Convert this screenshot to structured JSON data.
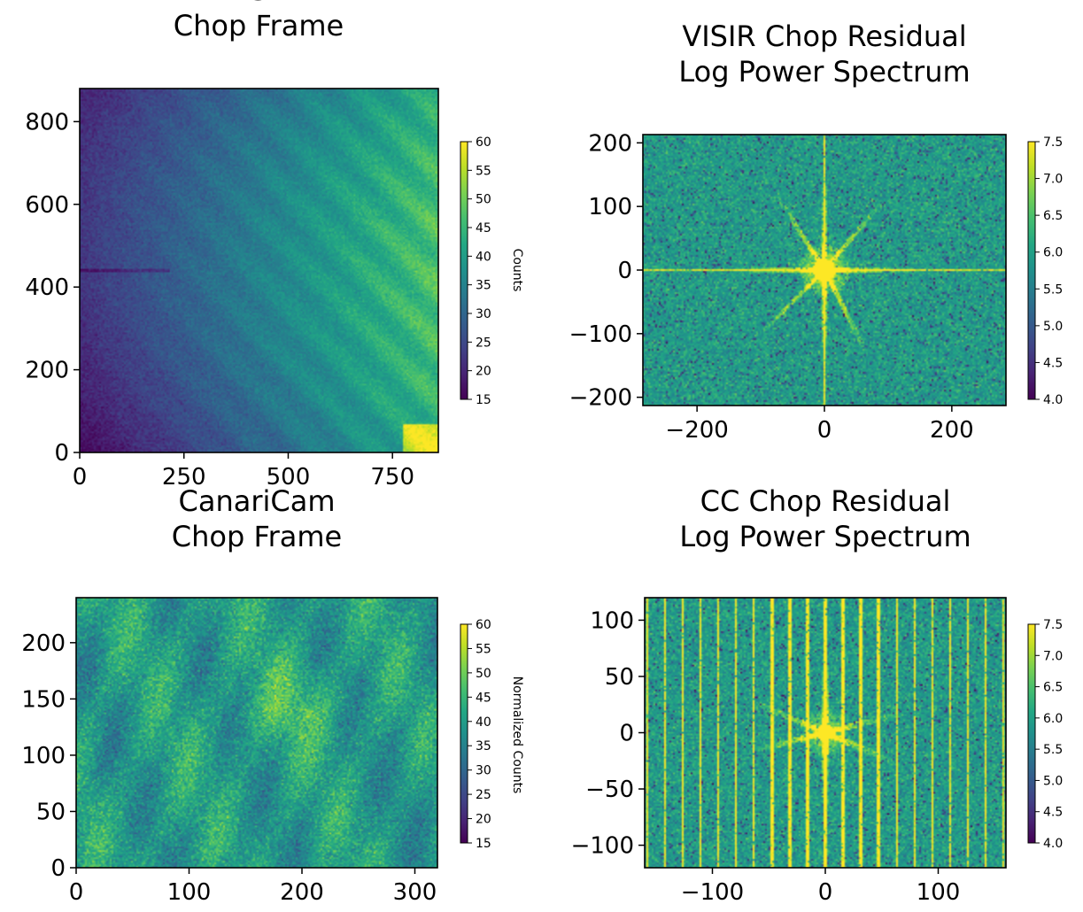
{
  "chart_data": [
    {
      "type": "heatmap",
      "title_lines": [
        "VISIR",
        "Chop Frame"
      ],
      "xlim": [
        0,
        860
      ],
      "ylim": [
        0,
        880
      ],
      "xticks": [
        0,
        250,
        500,
        750
      ],
      "yticks": [
        0,
        200,
        400,
        600,
        800
      ],
      "pattern": "visir-frame",
      "colormap": "viridis",
      "colorbar": {
        "range": [
          15,
          60
        ],
        "ticks": [
          15,
          20,
          25,
          30,
          35,
          40,
          45,
          50,
          55,
          60
        ],
        "label": "Counts"
      }
    },
    {
      "type": "heatmap",
      "title_lines": [
        "VISIR Chop Residual",
        "Log Power Spectrum"
      ],
      "xlim": [
        -285,
        285
      ],
      "ylim": [
        -213,
        213
      ],
      "xticks": [
        -200,
        0,
        200
      ],
      "yticks": [
        -200,
        -100,
        0,
        100,
        200
      ],
      "pattern": "visir-spectrum",
      "colormap": "viridis",
      "colorbar": {
        "range": [
          4.0,
          7.5
        ],
        "ticks": [
          4.0,
          4.5,
          5.0,
          5.5,
          6.0,
          6.5,
          7.0,
          7.5
        ],
        "label": ""
      }
    },
    {
      "type": "heatmap",
      "title_lines": [
        "CanariCam",
        "Chop Frame"
      ],
      "xlim": [
        0,
        320
      ],
      "ylim": [
        0,
        240
      ],
      "xticks": [
        0,
        100,
        200,
        300
      ],
      "yticks": [
        0,
        50,
        100,
        150,
        200
      ],
      "pattern": "cc-frame",
      "colormap": "viridis",
      "colorbar": {
        "range": [
          15,
          60
        ],
        "ticks": [
          15,
          20,
          25,
          30,
          35,
          40,
          45,
          50,
          55,
          60
        ],
        "label": "Normalized Counts"
      }
    },
    {
      "type": "heatmap",
      "title_lines": [
        "CC Chop Residual",
        "Log Power Spectrum"
      ],
      "xlim": [
        -160,
        160
      ],
      "ylim": [
        -120,
        120
      ],
      "xticks": [
        -100,
        0,
        100
      ],
      "yticks": [
        -100,
        -50,
        0,
        50,
        100
      ],
      "pattern": "cc-spectrum",
      "colormap": "viridis",
      "colorbar": {
        "range": [
          4.0,
          7.5
        ],
        "ticks": [
          4.0,
          4.5,
          5.0,
          5.5,
          6.0,
          6.5,
          7.0,
          7.5
        ],
        "label": ""
      }
    }
  ]
}
